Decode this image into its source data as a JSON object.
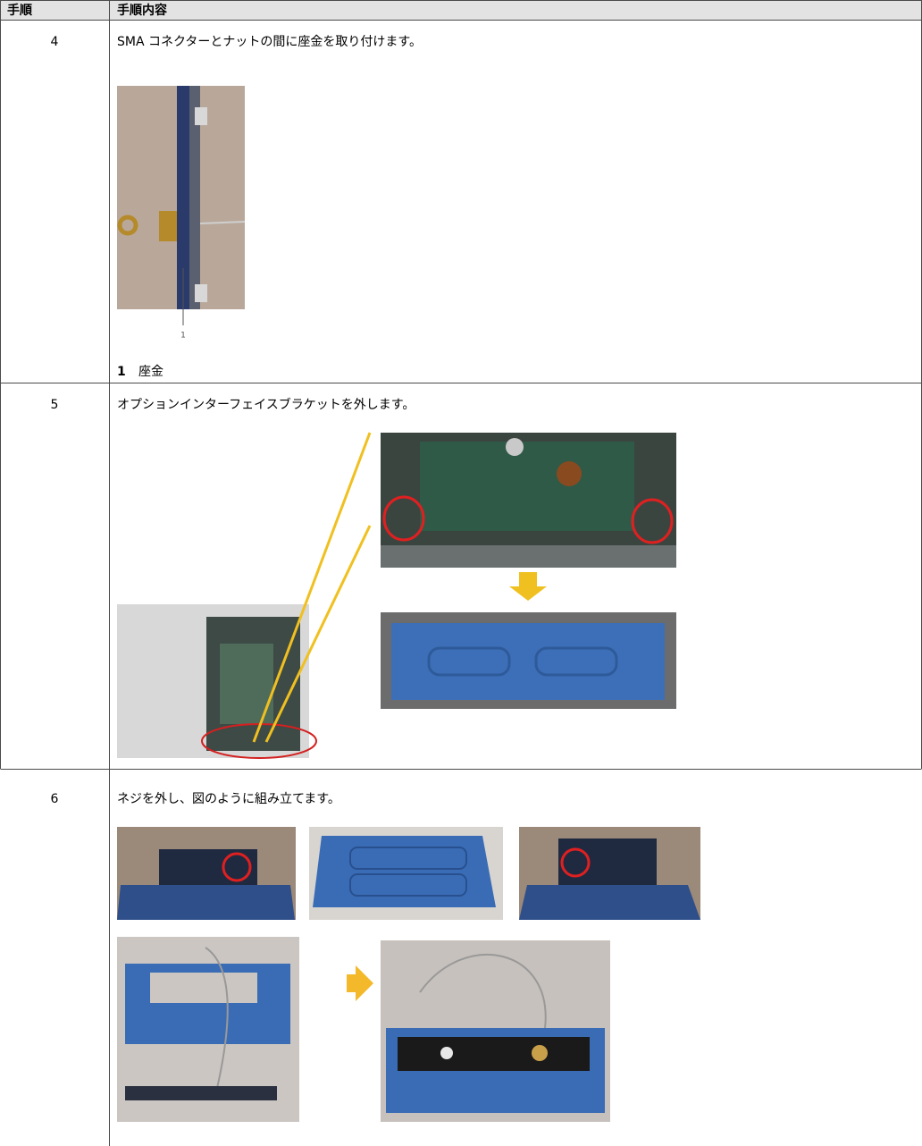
{
  "table": {
    "header": [
      "手順",
      "手順内容"
    ],
    "rows": [
      {
        "step": "4",
        "text": "SMA コネクターとナットの間に座金を取り付けます。",
        "callout": "1",
        "legend": {
          "number": "1",
          "text": "座金"
        }
      },
      {
        "step": "5",
        "text": "オプションインターフェイスブラケットを外します。"
      },
      {
        "step": "6",
        "text": "ネジを外し、図のように組み立てます。"
      }
    ]
  }
}
